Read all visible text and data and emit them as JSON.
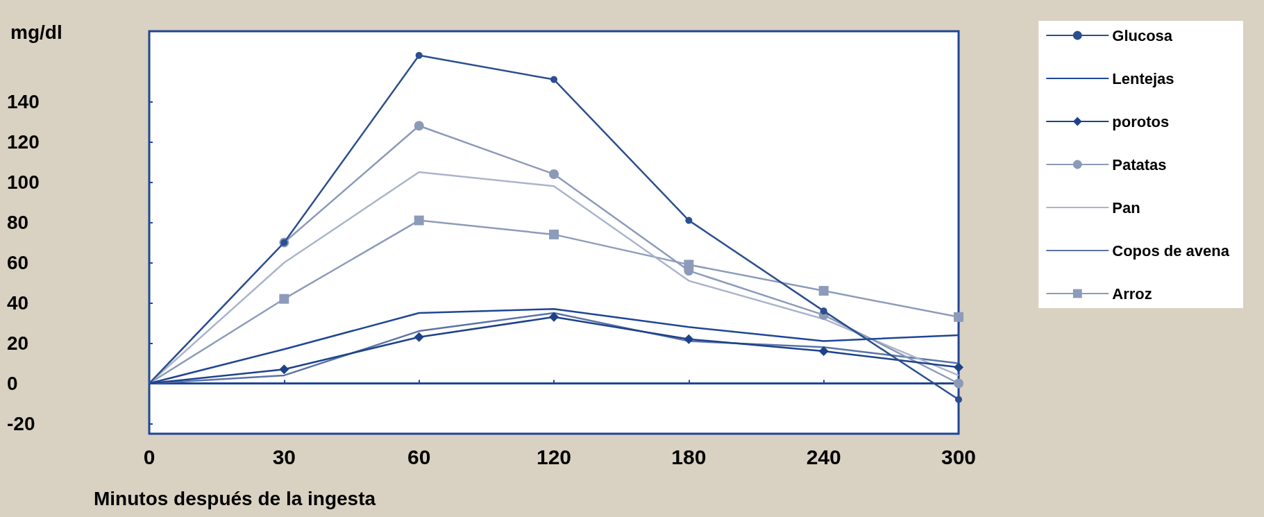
{
  "chart_data": {
    "type": "line",
    "xlabel": "Minutos después de la ingesta",
    "ylabel": "mg/dl",
    "categories": [
      "0",
      "30",
      "60",
      "120",
      "180",
      "240",
      "300"
    ],
    "ylim": [
      -25,
      175
    ],
    "yticks": [
      -20,
      0,
      20,
      40,
      60,
      80,
      100,
      120,
      140
    ],
    "grid": false,
    "legend": "right",
    "ref_lines": [
      {
        "axis": "y",
        "value": 0,
        "color": "#1f4597"
      }
    ],
    "series": [
      {
        "name": "Glucosa",
        "color": "#2b4f8f",
        "marker": "circle",
        "values": [
          0,
          70,
          163,
          151,
          81,
          36,
          -8
        ]
      },
      {
        "name": "Lentejas",
        "color": "#1f4597",
        "marker": "none",
        "values": [
          0,
          17,
          35,
          37,
          28,
          21,
          24
        ]
      },
      {
        "name": "porotos",
        "color": "#1d428a",
        "marker": "diamond",
        "values": [
          0,
          7,
          23,
          33,
          22,
          16,
          8
        ]
      },
      {
        "name": "Patatas",
        "color": "#8c9ab8",
        "marker": "circle",
        "values": [
          0,
          70,
          128,
          104,
          56,
          34,
          0
        ]
      },
      {
        "name": "Pan",
        "color": "#aab4cc",
        "marker": "none",
        "values": [
          0,
          60,
          105,
          98,
          51,
          32,
          4
        ]
      },
      {
        "name": "Copos de avena",
        "color": "#5a73a6",
        "marker": "none",
        "values": [
          0,
          4,
          26,
          35,
          21,
          18,
          10
        ]
      },
      {
        "name": "Arroz",
        "color": "#8d9bbb",
        "marker": "square",
        "values": [
          0,
          42,
          81,
          74,
          59,
          46,
          33
        ]
      }
    ]
  }
}
